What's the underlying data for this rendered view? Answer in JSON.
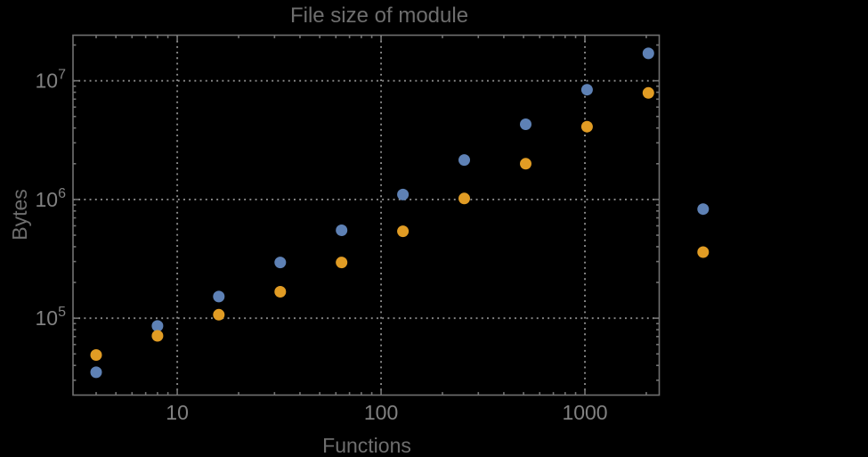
{
  "chart_data": {
    "type": "scatter",
    "title": "File size of module",
    "xlabel": "Functions",
    "ylabel": "Bytes",
    "x_scale": "log",
    "y_scale": "log",
    "xlim": [
      3.08,
      2315
    ],
    "ylim": [
      22500,
      24200000
    ],
    "grid": "major-dotted",
    "legend": "none",
    "x_major_ticks": [
      10,
      100,
      1000
    ],
    "x_major_tick_labels": [
      "10",
      "100",
      "1000"
    ],
    "y_major_ticks": [
      100000,
      1000000,
      10000000
    ],
    "y_major_tick_labels": [
      {
        "base": "10",
        "exp": "5"
      },
      {
        "base": "10",
        "exp": "6"
      },
      {
        "base": "10",
        "exp": "7"
      }
    ],
    "x": [
      4,
      8,
      16,
      32,
      64,
      128,
      256,
      512,
      1024,
      2048,
      3800
    ],
    "series": [
      {
        "name": "series-blue",
        "color": "#5E81B5",
        "values": [
          35000,
          86000,
          152000,
          295000,
          550000,
          1100000,
          2150000,
          4300000,
          8400000,
          17000000,
          830000
        ]
      },
      {
        "name": "series-orange",
        "color": "#E19C24",
        "values": [
          49000,
          71000,
          107000,
          167000,
          295000,
          540000,
          1020000,
          2000000,
          4100000,
          7900000,
          360000
        ]
      }
    ],
    "marker_diameter_px": 13,
    "colors": {
      "background": "#000000",
      "frame": "#707070",
      "gridline": "#8c8c8c",
      "tick": "#747474",
      "title_text": "#6e6e6e",
      "tick_text": "#818181"
    }
  }
}
